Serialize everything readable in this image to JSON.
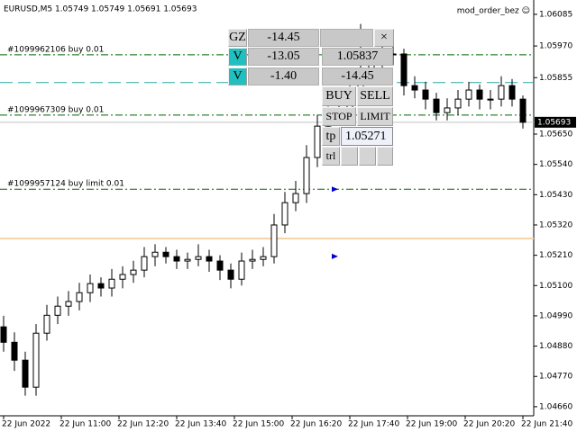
{
  "header": {
    "title": "EURUSD,M5 1.05749 1.05749 1.05691 1.05693",
    "indicator": "mod_order_bez ☺"
  },
  "chart": {
    "type": "candlestick",
    "open": [
      1.0495,
      1.04894,
      1.04829,
      1.04731,
      1.04927,
      1.04992,
      1.05025,
      1.05042,
      1.05074,
      1.05107,
      1.05091,
      1.05123,
      1.0514,
      1.05156,
      1.05205,
      1.05221,
      1.05205,
      1.05189,
      1.05195,
      1.05205,
      1.05189,
      1.05156,
      1.05123,
      1.05189,
      1.05195,
      1.05205,
      1.0532,
      1.05401,
      1.05434,
      1.05565,
      1.05679,
      1.05712,
      1.05745,
      1.0581,
      1.05875,
      1.05908,
      1.05941,
      1.05941,
      1.05826,
      1.0581,
      1.05777,
      1.05728,
      1.05745,
      1.05777,
      1.0581,
      1.05777,
      1.05777,
      1.05826,
      1.05777
    ],
    "high": [
      1.0499,
      1.0493,
      1.0486,
      1.0496,
      1.0503,
      1.0506,
      1.0508,
      1.0511,
      1.0514,
      1.0513,
      1.0516,
      1.0517,
      1.0519,
      1.0524,
      1.0525,
      1.0524,
      1.0523,
      1.0522,
      1.0525,
      1.0523,
      1.0521,
      1.0518,
      1.0522,
      1.0523,
      1.0524,
      1.0536,
      1.0544,
      1.0548,
      1.0561,
      1.0572,
      1.0575,
      1.0579,
      1.0585,
      1.0605,
      1.0595,
      1.0598,
      1.0597,
      1.0596,
      1.0586,
      1.0584,
      1.058,
      1.0578,
      1.0581,
      1.0584,
      1.0583,
      1.0581,
      1.0586,
      1.0585,
      1.0579
    ],
    "low": [
      1.0486,
      1.0479,
      1.047,
      1.047,
      1.049,
      1.0496,
      1.0499,
      1.0501,
      1.0504,
      1.0506,
      1.0506,
      1.0509,
      1.0511,
      1.0513,
      1.0517,
      1.0518,
      1.0516,
      1.0516,
      1.0517,
      1.0515,
      1.0512,
      1.0509,
      1.051,
      1.0516,
      1.0517,
      1.0518,
      1.0529,
      1.0537,
      1.054,
      1.0553,
      1.0565,
      1.0568,
      1.0571,
      1.0578,
      1.0584,
      1.0588,
      1.059,
      1.0579,
      1.0578,
      1.0574,
      1.057,
      1.057,
      1.0572,
      1.0575,
      1.0574,
      1.0574,
      1.0575,
      1.0575,
      1.0567
    ],
    "close": [
      1.04894,
      1.04829,
      1.04731,
      1.04927,
      1.04992,
      1.05025,
      1.05042,
      1.05074,
      1.05107,
      1.05091,
      1.05123,
      1.0514,
      1.05156,
      1.05205,
      1.05221,
      1.05205,
      1.05189,
      1.05195,
      1.05205,
      1.05189,
      1.05156,
      1.05123,
      1.05189,
      1.05195,
      1.05205,
      1.0532,
      1.05401,
      1.05434,
      1.05565,
      1.05679,
      1.05712,
      1.05745,
      1.0581,
      1.05875,
      1.05908,
      1.05941,
      1.05941,
      1.05826,
      1.0581,
      1.05777,
      1.05728,
      1.05745,
      1.05777,
      1.0581,
      1.05777,
      1.05777,
      1.05826,
      1.05777,
      1.05693
    ],
    "ylim": [
      1.04627,
      1.06137
    ],
    "yticks": [
      1.06085,
      {
        "value": 1.0597,
        "label": "1.05970"
      },
      1.05855,
      {
        "value": 1.0565,
        "label": "1.05650"
      },
      {
        "value": 1.0554,
        "label": "1.05540"
      },
      {
        "value": 1.0543,
        "label": "1.05430"
      },
      {
        "value": 1.0532,
        "label": "1.05320"
      },
      {
        "value": 1.0521,
        "label": "1.05210"
      },
      {
        "value": 1.051,
        "label": "1.05100"
      },
      {
        "value": 1.0499,
        "label": "1.04990"
      },
      {
        "value": 1.0488,
        "label": "1.04880"
      },
      {
        "value": 1.0477,
        "label": "1.04770"
      },
      {
        "value": 1.0466,
        "label": "1.04660"
      }
    ],
    "current_price": 1.05693,
    "time_labels": [
      "22 Jun 2022",
      "22 Jun 11:00",
      "22 Jun 12:20",
      "22 Jun 13:40",
      "22 Jun 15:00",
      "22 Jun 16:20",
      "22 Jun 17:40",
      "22 Jun 19:00",
      "22 Jun 20:20",
      "22 Jun 21:40"
    ],
    "order_lines": [
      {
        "label": "#1099962106 buy 0.01",
        "price": 1.05938
      },
      {
        "label": "#1099967309 buy 0.01",
        "price": 1.05719
      },
      {
        "label": "#1099957124 buy limit 0.01",
        "price": 1.0545
      }
    ],
    "order_line_color": "#006400",
    "panel_price_line": 1.05837,
    "panel_price_color": "#2aa8a8",
    "tp_line": 1.05271,
    "tp_color": "#f7d3a8",
    "arrows": [
      1.05719,
      1.0545,
      1.05206
    ],
    "arrow_color": "#0000cc"
  },
  "panel": {
    "gz": "GZ",
    "gz_value": "-14.45",
    "close": "×",
    "rows": [
      {
        "toggle": "V",
        "value": "-13.05",
        "price": "1.05837"
      },
      {
        "toggle": "V",
        "value": "-1.40",
        "price": "-14.45"
      }
    ],
    "buy": "BUY",
    "sell": "SELL",
    "stop": "STOP",
    "limit": "LIMIT",
    "tp_label": "tp",
    "tp_value": "1.05271",
    "trl": "trl"
  }
}
